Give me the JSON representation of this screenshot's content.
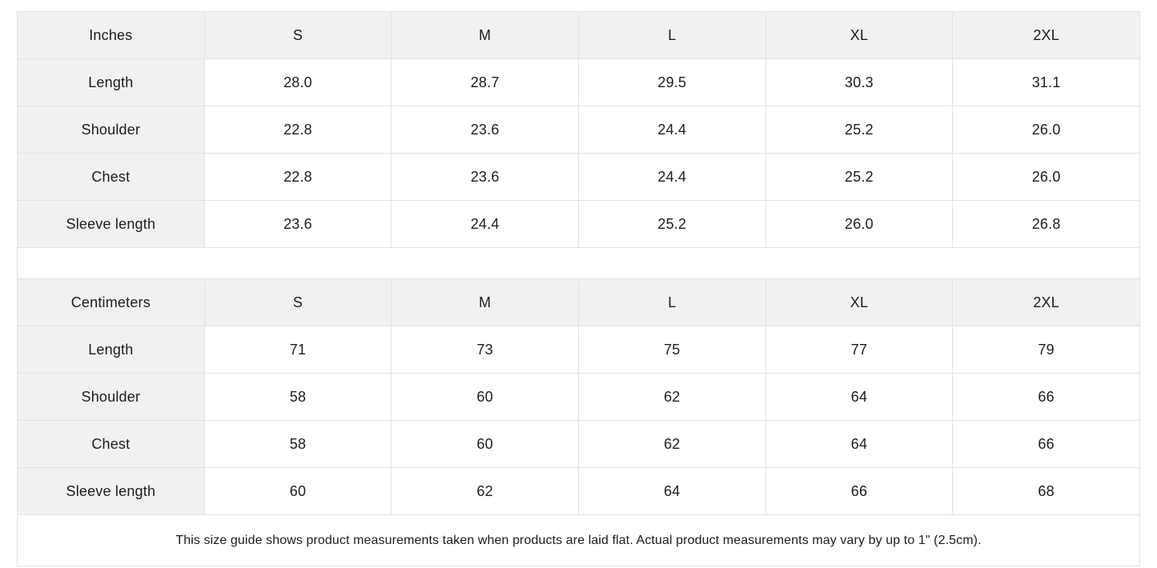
{
  "colors": {
    "header_bg": "#f1f1f1",
    "label_bg": "#f1f1f1",
    "border": "#e2e2e2",
    "text": "#1d1d1f",
    "cell_bg": "#ffffff"
  },
  "note": "This size guide shows product measurements taken when products are laid flat.  Actual product measurements may vary by up to 1\" (2.5cm).",
  "chart_data": [
    {
      "type": "table",
      "title": "Inches",
      "columns": [
        "Inches",
        "S",
        "M",
        "L",
        "XL",
        "2XL"
      ],
      "rows": [
        [
          "Length",
          "28.0",
          "28.7",
          "29.5",
          "30.3",
          "31.1"
        ],
        [
          "Shoulder",
          "22.8",
          "23.6",
          "24.4",
          "25.2",
          "26.0"
        ],
        [
          "Chest",
          "22.8",
          "23.6",
          "24.4",
          "25.2",
          "26.0"
        ],
        [
          "Sleeve length",
          "23.6",
          "24.4",
          "25.2",
          "26.0",
          "26.8"
        ]
      ]
    },
    {
      "type": "table",
      "title": "Centimeters",
      "columns": [
        "Centimeters",
        "S",
        "M",
        "L",
        "XL",
        "2XL"
      ],
      "rows": [
        [
          "Length",
          "71",
          "73",
          "75",
          "77",
          "79"
        ],
        [
          "Shoulder",
          "58",
          "60",
          "62",
          "64",
          "66"
        ],
        [
          "Chest",
          "58",
          "60",
          "62",
          "64",
          "66"
        ],
        [
          "Sleeve length",
          "60",
          "62",
          "64",
          "66",
          "68"
        ]
      ]
    }
  ]
}
